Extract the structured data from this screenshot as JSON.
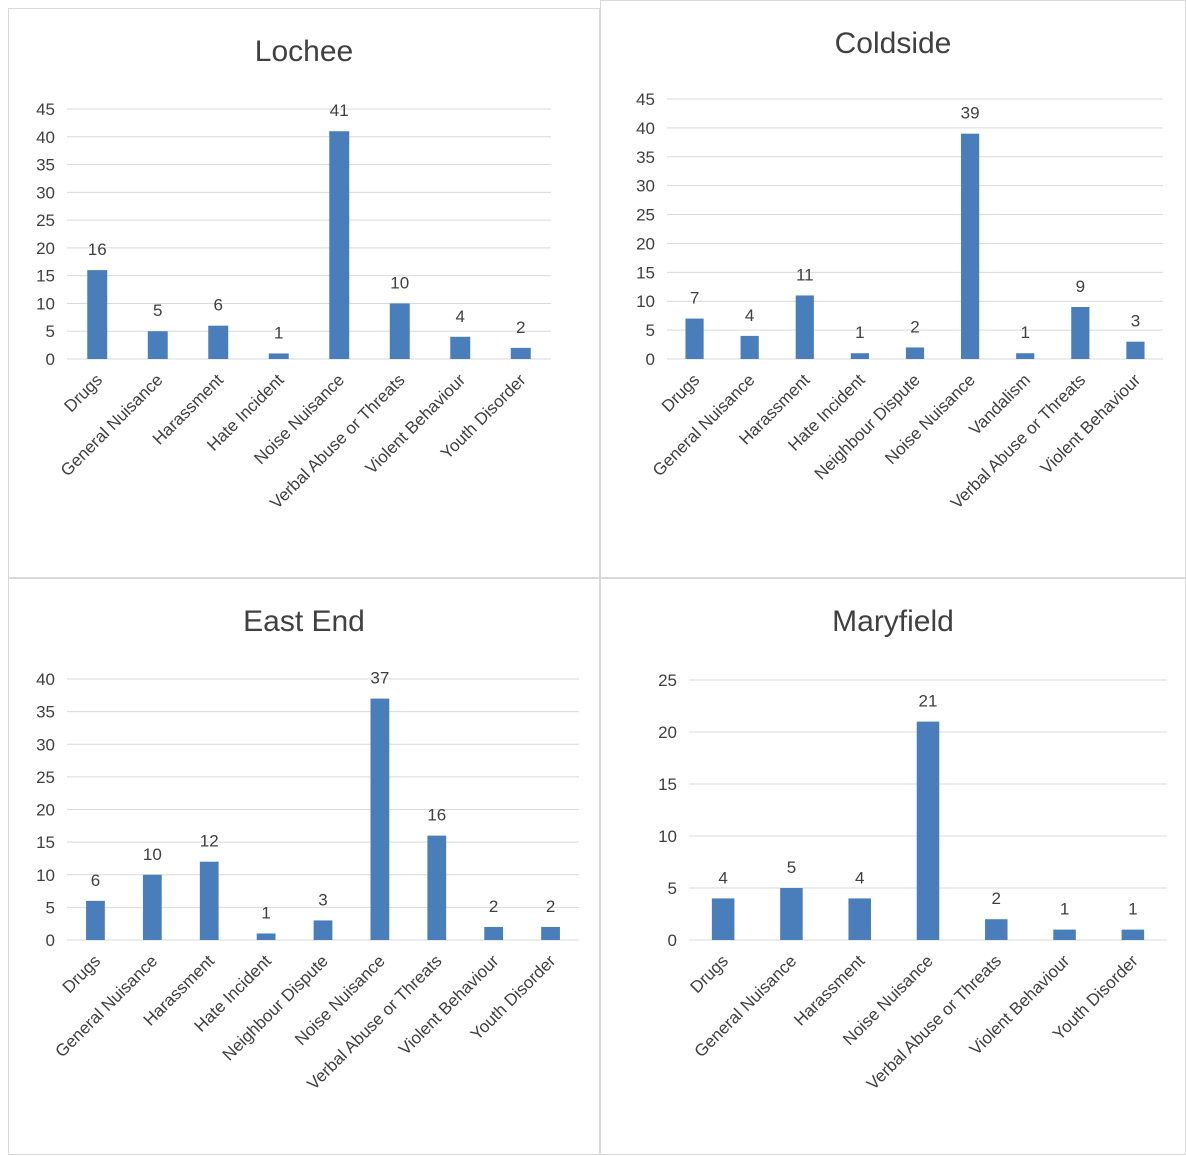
{
  "colors": {
    "bar": "#4a7ebb",
    "grid": "#d9d9d9",
    "text": "#404040",
    "border": "#d9d9d9"
  },
  "chart_data": [
    {
      "type": "bar",
      "title": "Lochee",
      "categories": [
        "Drugs",
        "General Nuisance",
        "Harassment",
        "Hate Incident",
        "Noise Nuisance",
        "Verbal Abuse or Threats",
        "Violent Behaviour",
        "Youth Disorder"
      ],
      "values": [
        16,
        5,
        6,
        1,
        41,
        10,
        4,
        2
      ],
      "ylim": [
        0,
        45
      ],
      "yticks": [
        0,
        5,
        10,
        15,
        20,
        25,
        30,
        35,
        40,
        45
      ],
      "grid": true,
      "data_labels": true
    },
    {
      "type": "bar",
      "title": "Coldside",
      "categories": [
        "Drugs",
        "General Nuisance",
        "Harassment",
        "Hate Incident",
        "Neighbour Dispute",
        "Noise Nuisance",
        "Vandalism",
        "Verbal Abuse or Threats",
        "Violent Behaviour"
      ],
      "values": [
        7,
        4,
        11,
        1,
        2,
        39,
        1,
        9,
        3
      ],
      "ylim": [
        0,
        45
      ],
      "yticks": [
        0,
        5,
        10,
        15,
        20,
        25,
        30,
        35,
        40,
        45
      ],
      "grid": true,
      "data_labels": true
    },
    {
      "type": "bar",
      "title": "East End",
      "categories": [
        "Drugs",
        "General Nuisance",
        "Harassment",
        "Hate Incident",
        "Neighbour Dispute",
        "Noise Nuisance",
        "Verbal Abuse or Threats",
        "Violent Behaviour",
        "Youth Disorder"
      ],
      "values": [
        6,
        10,
        12,
        1,
        3,
        37,
        16,
        2,
        2
      ],
      "ylim": [
        0,
        40
      ],
      "yticks": [
        0,
        5,
        10,
        15,
        20,
        25,
        30,
        35,
        40
      ],
      "grid": true,
      "data_labels": true
    },
    {
      "type": "bar",
      "title": "Maryfield",
      "categories": [
        "Drugs",
        "General Nuisance",
        "Harassment",
        "Noise Nuisance",
        "Verbal Abuse or Threats",
        "Violent Behaviour",
        "Youth Disorder"
      ],
      "values": [
        4,
        5,
        4,
        21,
        2,
        1,
        1
      ],
      "ylim": [
        0,
        25
      ],
      "yticks": [
        0,
        5,
        10,
        15,
        20,
        25
      ],
      "grid": true,
      "data_labels": true
    }
  ]
}
